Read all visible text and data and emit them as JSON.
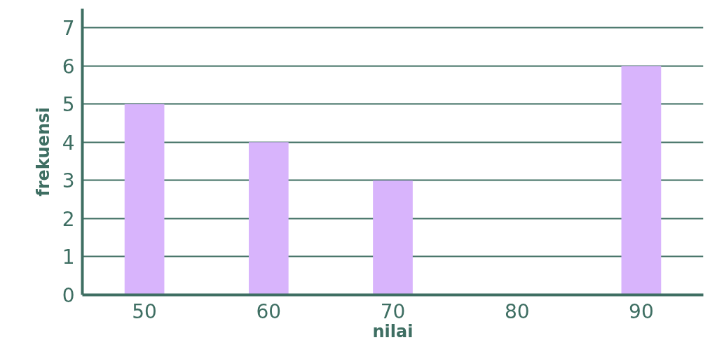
{
  "chart_data": {
    "type": "bar",
    "xlabel": "nilai",
    "ylabel": "frekuensi",
    "categories": [
      "50",
      "60",
      "70",
      "80",
      "90"
    ],
    "values": [
      5,
      4,
      3,
      0,
      6
    ],
    "color": "#d8b4fc",
    "ylim": [
      0,
      7.5
    ],
    "yticks": [
      0,
      1,
      2,
      3,
      4,
      5,
      6,
      7
    ],
    "grid": "y"
  }
}
